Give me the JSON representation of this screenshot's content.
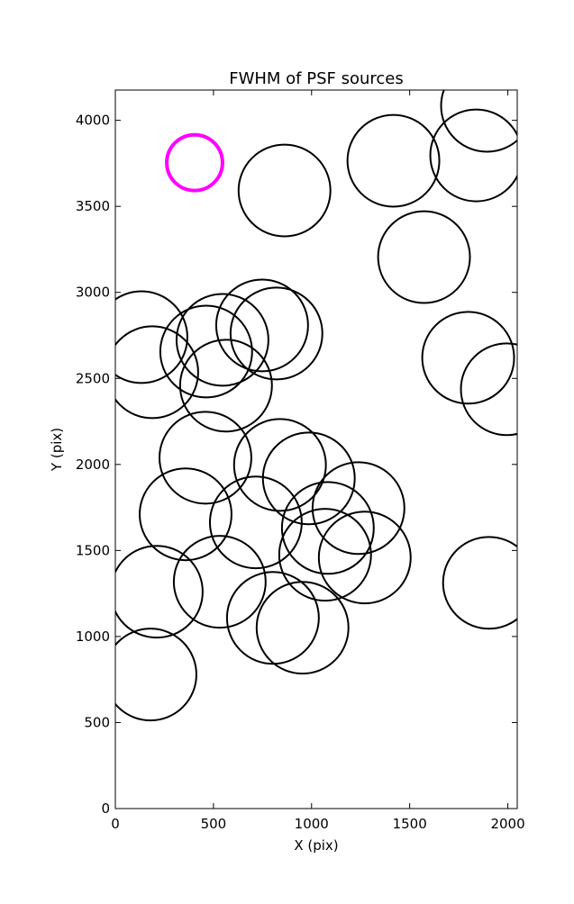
{
  "chart_data": {
    "type": "scatter",
    "title": "FWHM of PSF sources",
    "x_label": "X (pix)",
    "y_label": "Y (pix)",
    "x": [
      404,
      862,
      1417,
      1839,
      1894,
      1573,
      133,
      188,
      463,
      546,
      748,
      821,
      564,
      1798,
      1995,
      459,
      839,
      986,
      1239,
      1083,
      358,
      716,
      1069,
      1271,
      211,
      532,
      1904,
      803,
      954,
      179
    ],
    "y": [
      3754,
      3592,
      3765,
      3796,
      4084,
      3205,
      2740,
      2536,
      2656,
      2724,
      2808,
      2761,
      2458,
      2620,
      2437,
      2039,
      1997,
      1919,
      1746,
      1631,
      1710,
      1663,
      1475,
      1459,
      1260,
      1318,
      1312,
      1108,
      1051,
      779
    ],
    "sizes": [
      142,
      234,
      234,
      234,
      234,
      234,
      234,
      234,
      234,
      234,
      234,
      234,
      234,
      234,
      234,
      234,
      234,
      234,
      234,
      234,
      234,
      234,
      234,
      234,
      234,
      234,
      234,
      234,
      234,
      234
    ],
    "colors": [
      "#ff00ff",
      "#000000",
      "#000000",
      "#000000",
      "#000000",
      "#000000",
      "#000000",
      "#000000",
      "#000000",
      "#000000",
      "#000000",
      "#000000",
      "#000000",
      "#000000",
      "#000000",
      "#000000",
      "#000000",
      "#000000",
      "#000000",
      "#000000",
      "#000000",
      "#000000",
      "#000000",
      "#000000",
      "#000000",
      "#000000",
      "#000000",
      "#000000",
      "#000000",
      "#000000"
    ],
    "xlim": [
      0,
      2048
    ],
    "ylim": [
      0,
      4176
    ],
    "xticks": [
      0,
      500,
      1000,
      1500,
      2000
    ],
    "yticks": [
      0,
      500,
      1000,
      1500,
      2000,
      2500,
      3000,
      3500,
      4000
    ]
  }
}
